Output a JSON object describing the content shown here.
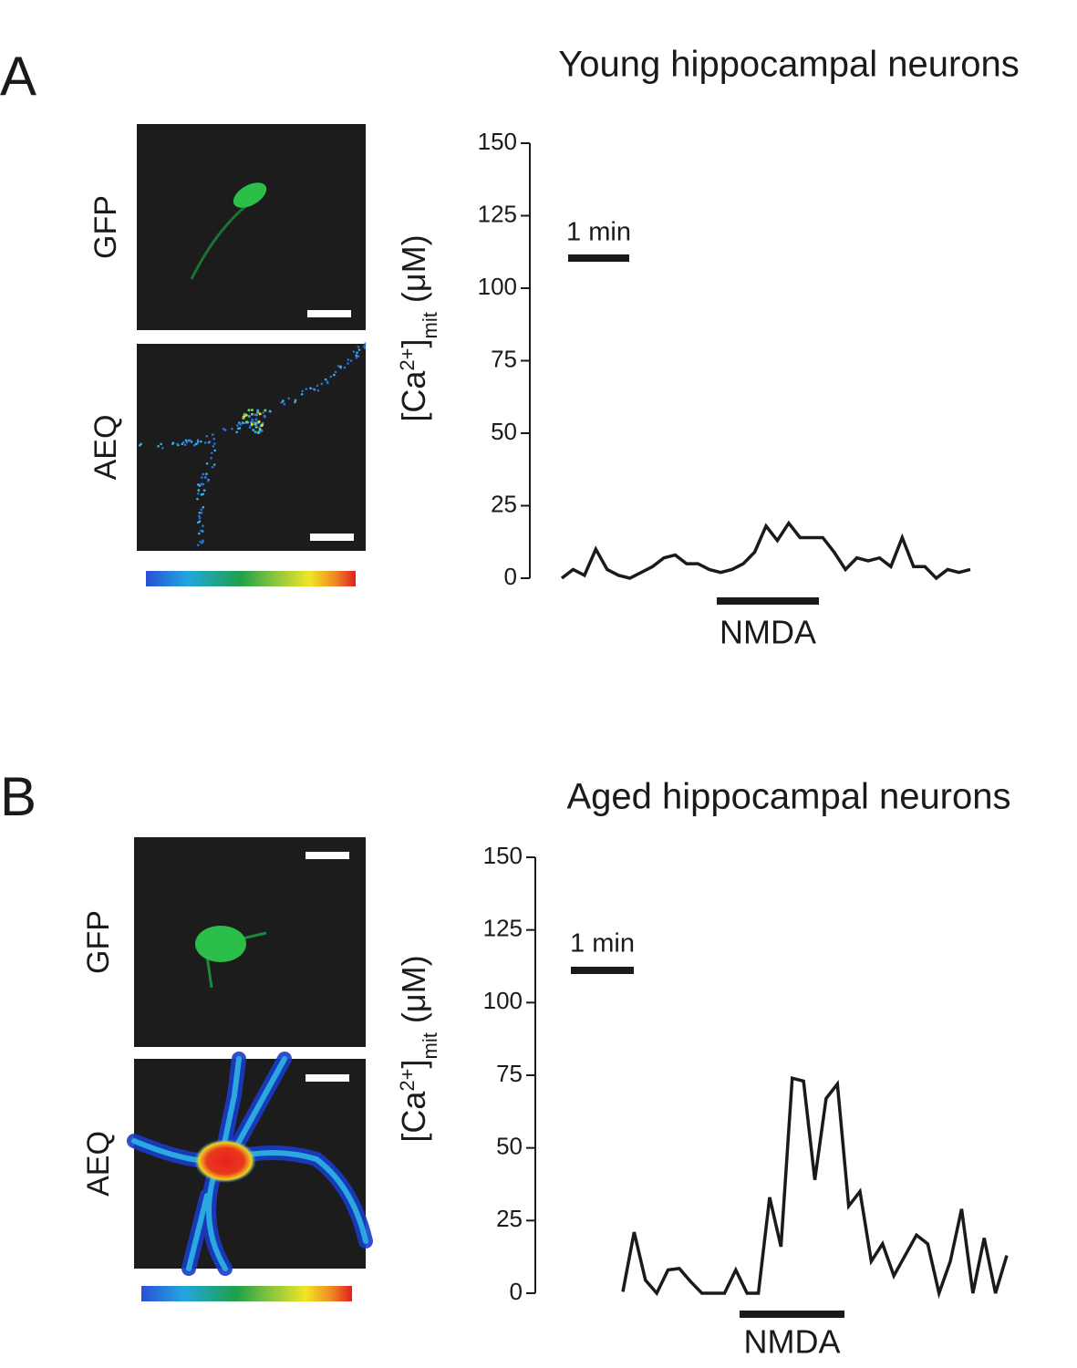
{
  "chart_data": [
    {
      "type": "line",
      "panel": "A",
      "title": "Young hippocampal neurons",
      "image_labels": [
        "GFP",
        "AEQ"
      ],
      "y_label": [
        "[Ca",
        "2+",
        "]",
        "mit",
        "(μM)"
      ],
      "scale_bar_label": "1 min",
      "stimulus_label": "NMDA",
      "color": "#1a1a1a",
      "ylim": [
        0,
        150
      ],
      "yticks": [
        0,
        25,
        50,
        75,
        100,
        125,
        150
      ],
      "values": [
        0,
        3,
        1,
        10,
        3,
        1,
        0,
        2,
        4,
        7,
        8,
        5,
        5,
        3,
        2,
        3,
        5,
        9,
        18,
        13,
        19,
        14,
        14,
        14,
        9,
        3,
        7,
        6,
        7,
        4,
        14,
        4,
        4,
        0,
        3,
        2,
        3
      ]
    },
    {
      "type": "line",
      "panel": "B",
      "title": "Aged hippocampal neurons",
      "image_labels": [
        "GFP",
        "AEQ"
      ],
      "y_label": [
        "[Ca",
        "2+",
        "]",
        "mit",
        "(μM)"
      ],
      "scale_bar_label": "1 min",
      "stimulus_label": "NMDA",
      "color": "#1a1a1a",
      "ylim": [
        0,
        150
      ],
      "yticks": [
        0,
        25,
        50,
        75,
        100,
        125,
        150
      ],
      "values": [
        0.5,
        21,
        4.5,
        0,
        8,
        8.5,
        4,
        0,
        0,
        0,
        8,
        0,
        0,
        33,
        16,
        74,
        73,
        39,
        67,
        72,
        30,
        35,
        11,
        17,
        6,
        13,
        20,
        17,
        0,
        11,
        29,
        0,
        19,
        0,
        13
      ]
    }
  ]
}
